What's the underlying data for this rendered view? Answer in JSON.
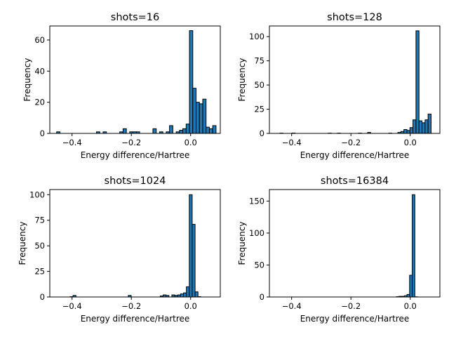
{
  "chart_data": [
    {
      "type": "bar",
      "title": "shots=16",
      "xlabel": "Energy difference/Hartree",
      "ylabel": "Frequency",
      "xlim": [
        -0.475,
        0.1
      ],
      "ylim": [
        0,
        69
      ],
      "xticks": [
        -0.4,
        -0.2,
        0.0
      ],
      "xtick_labels": [
        "−0.4",
        "−0.2",
        "0.0"
      ],
      "yticks": [
        0,
        20,
        40,
        60
      ],
      "ytick_labels": [
        "0",
        "20",
        "40",
        "60"
      ],
      "bin_width": 0.0112,
      "color": "#1f77b4",
      "bins": [
        {
          "x": -0.452,
          "count": 1
        },
        {
          "x": -0.3176,
          "count": 1
        },
        {
          "x": -0.2952,
          "count": 1
        },
        {
          "x": -0.2392,
          "count": 1
        },
        {
          "x": -0.228,
          "count": 3
        },
        {
          "x": -0.2056,
          "count": 1
        },
        {
          "x": -0.1944,
          "count": 1
        },
        {
          "x": -0.1832,
          "count": 1
        },
        {
          "x": -0.1272,
          "count": 3
        },
        {
          "x": -0.1048,
          "count": 1
        },
        {
          "x": -0.0824,
          "count": 1
        },
        {
          "x": -0.0712,
          "count": 5
        },
        {
          "x": -0.0488,
          "count": 1
        },
        {
          "x": -0.0376,
          "count": 2
        },
        {
          "x": -0.0264,
          "count": 3
        },
        {
          "x": -0.0152,
          "count": 6
        },
        {
          "x": -0.004,
          "count": 66
        },
        {
          "x": 0.0072,
          "count": 29
        },
        {
          "x": 0.0184,
          "count": 20
        },
        {
          "x": 0.0296,
          "count": 19
        },
        {
          "x": 0.0408,
          "count": 22
        },
        {
          "x": 0.052,
          "count": 4
        },
        {
          "x": 0.0632,
          "count": 3
        },
        {
          "x": 0.0744,
          "count": 5
        }
      ]
    },
    {
      "type": "bar",
      "title": "shots=128",
      "xlabel": "Energy difference/Hartree",
      "ylabel": "Frequency",
      "xlim": [
        -0.475,
        0.1
      ],
      "ylim": [
        0,
        111
      ],
      "xticks": [
        -0.4,
        -0.2,
        0.0
      ],
      "xtick_labels": [
        "−0.4",
        "−0.2",
        "0.0"
      ],
      "yticks": [
        0,
        25,
        50,
        75,
        100
      ],
      "ytick_labels": [
        "0",
        "25",
        "50",
        "75",
        "100"
      ],
      "bin_width": 0.0102,
      "color": "#1f77b4",
      "bins": [
        {
          "x": -0.4396,
          "count": 0.3
        },
        {
          "x": -0.3988,
          "count": 0.4
        },
        {
          "x": -0.2764,
          "count": 0.3
        },
        {
          "x": -0.2458,
          "count": 0.3
        },
        {
          "x": -0.1744,
          "count": 0.3
        },
        {
          "x": -0.1438,
          "count": 1
        },
        {
          "x": -0.0724,
          "count": 0.3
        },
        {
          "x": -0.0418,
          "count": 1
        },
        {
          "x": -0.0316,
          "count": 2
        },
        {
          "x": -0.0214,
          "count": 4
        },
        {
          "x": -0.0112,
          "count": 3
        },
        {
          "x": -0.001,
          "count": 6
        },
        {
          "x": 0.0092,
          "count": 14
        },
        {
          "x": 0.0194,
          "count": 106
        },
        {
          "x": 0.0296,
          "count": 13
        },
        {
          "x": 0.0398,
          "count": 11
        },
        {
          "x": 0.05,
          "count": 14
        },
        {
          "x": 0.0602,
          "count": 20
        }
      ]
    },
    {
      "type": "bar",
      "title": "shots=1024",
      "xlabel": "Energy difference/Hartree",
      "ylabel": "Frequency",
      "xlim": [
        -0.475,
        0.1
      ],
      "ylim": [
        0,
        105
      ],
      "xticks": [
        -0.4,
        -0.2,
        0.0
      ],
      "xtick_labels": [
        "−0.4",
        "−0.2",
        "0.0"
      ],
      "yticks": [
        0,
        25,
        50,
        75,
        100
      ],
      "ytick_labels": [
        "0",
        "25",
        "50",
        "75",
        "100"
      ],
      "bin_width": 0.0098,
      "color": "#1f77b4",
      "bins": [
        {
          "x": -0.4064,
          "count": 0.3
        },
        {
          "x": -0.3966,
          "count": 1.5
        },
        {
          "x": -0.2104,
          "count": 1.5
        },
        {
          "x": -0.1026,
          "count": 1
        },
        {
          "x": -0.0928,
          "count": 2
        },
        {
          "x": -0.083,
          "count": 1.5
        },
        {
          "x": -0.0634,
          "count": 2
        },
        {
          "x": -0.0536,
          "count": 1.5
        },
        {
          "x": -0.0438,
          "count": 2
        },
        {
          "x": -0.034,
          "count": 3
        },
        {
          "x": -0.0242,
          "count": 4
        },
        {
          "x": -0.0144,
          "count": 10
        },
        {
          "x": -0.0046,
          "count": 100
        },
        {
          "x": 0.0052,
          "count": 71
        },
        {
          "x": 0.015,
          "count": 5
        },
        {
          "x": 0.0248,
          "count": 0.3
        }
      ]
    },
    {
      "type": "bar",
      "title": "shots=16384",
      "xlabel": "Energy difference/Hartree",
      "ylabel": "Frequency",
      "xlim": [
        -0.475,
        0.1
      ],
      "ylim": [
        0,
        168
      ],
      "xticks": [
        -0.4,
        -0.2,
        0.0
      ],
      "xtick_labels": [
        "−0.4",
        "−0.2",
        "0.0"
      ],
      "yticks": [
        0,
        50,
        100,
        150
      ],
      "ytick_labels": [
        "0",
        "50",
        "100",
        "150"
      ],
      "bin_width": 0.00886,
      "color": "#1f77b4",
      "bins": [
        {
          "x": -0.0465,
          "count": 0.5
        },
        {
          "x": -0.0376,
          "count": 1
        },
        {
          "x": -0.0288,
          "count": 1
        },
        {
          "x": -0.0199,
          "count": 2
        },
        {
          "x": -0.011,
          "count": 4
        },
        {
          "x": -0.0022,
          "count": 34
        },
        {
          "x": 0.0067,
          "count": 160
        },
        {
          "x": 0.0155,
          "count": 0.3
        }
      ]
    }
  ]
}
